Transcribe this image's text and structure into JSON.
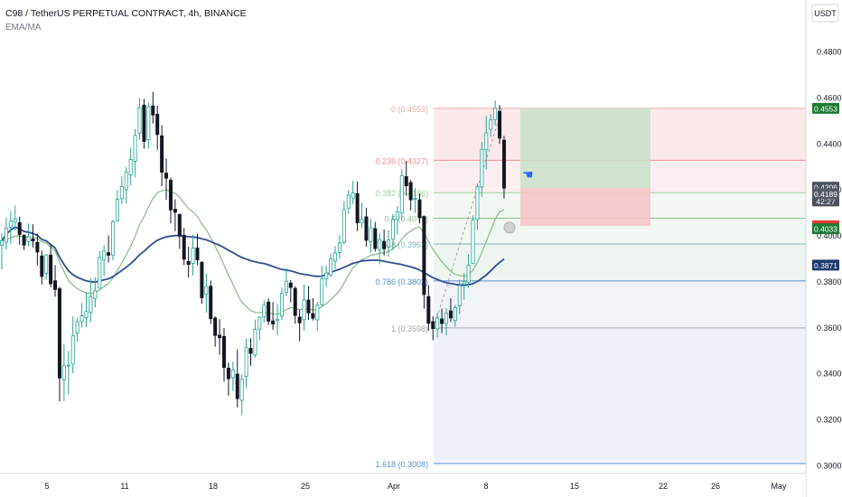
{
  "header": {
    "title": "C98 / TetherUS PERPETUAL CONTRACT, 4h, BINANCE",
    "indicator": "EMA/MA"
  },
  "colors": {
    "up": "#26a69a",
    "down": "#131722",
    "ema": "#8fbf8f",
    "ma": "#2f4f8f",
    "fib_red": "#f4a3a3",
    "fib_green": "#7fbf7f",
    "fib_blue": "#5a8fd0",
    "profit": "#c8e0c8",
    "loss": "#f5c4c8"
  },
  "chart_data": {
    "type": "candlestick",
    "currency": "USDT",
    "ylim": [
      0.296,
      0.506
    ],
    "price_ticks": [
      "0.4800",
      "0.4600",
      "0.4400",
      "0.4200",
      "0.4000",
      "0.3800",
      "0.3600",
      "0.3400",
      "0.3200",
      "0.3000"
    ],
    "time_ticks": [
      "5",
      "11",
      "18",
      "25",
      "Apr",
      "8",
      "15",
      "22",
      "26",
      "May"
    ],
    "price_labels": [
      {
        "value": 0.4553,
        "text": "0.4553",
        "bg": "#1f7a34"
      },
      {
        "value": 0.4206,
        "text": "0.4206",
        "bg": "#4a5160"
      },
      {
        "value": 0.415,
        "text": "42:27",
        "bg": "#4a5160"
      },
      {
        "value": 0.4189,
        "text": "0.4189",
        "bg": "#555a66"
      },
      {
        "value": 0.4042,
        "text": "0.4042",
        "bg": "#e53935"
      },
      {
        "value": 0.4033,
        "text": "0.4033",
        "bg": "#1f7a34"
      },
      {
        "value": 0.3871,
        "text": "0.3871",
        "bg": "#1e3a6e"
      }
    ],
    "fib_levels": [
      {
        "text": "0 (0.4553)",
        "value": 0.4553
      },
      {
        "text": "0.236 (0.4327)",
        "value": 0.4327
      },
      {
        "text": "0.382 (0.4186)",
        "value": 0.4186
      },
      {
        "text": "0.5 (0.4075)",
        "value": 0.4075
      },
      {
        "text": "0.618 (0.3963)",
        "value": 0.3963
      },
      {
        "text": "0.786 (0.3802)",
        "value": 0.3802
      },
      {
        "text": "1 (0.3598)",
        "value": 0.3598
      },
      {
        "text": "1.618 (0.3008)",
        "value": 0.3008
      }
    ],
    "position": {
      "entry": 0.4206,
      "target": 0.4553,
      "stop": 0.4042
    },
    "series_ohlc": [
      [
        0.3958,
        0.4008,
        0.3853,
        0.3977
      ],
      [
        0.3971,
        0.4077,
        0.3939,
        0.4032
      ],
      [
        0.4036,
        0.4106,
        0.3964,
        0.4062
      ],
      [
        0.4058,
        0.4131,
        0.4021,
        0.4072
      ],
      [
        0.4056,
        0.4081,
        0.396,
        0.4004
      ],
      [
        0.4,
        0.4006,
        0.3937,
        0.3958
      ],
      [
        0.3973,
        0.4052,
        0.3953,
        0.3994
      ],
      [
        0.3985,
        0.4049,
        0.3948,
        0.3976
      ],
      [
        0.397,
        0.4008,
        0.387,
        0.3928
      ],
      [
        0.3911,
        0.3934,
        0.3787,
        0.3822
      ],
      [
        0.3836,
        0.3919,
        0.3811,
        0.3915
      ],
      [
        0.3915,
        0.3959,
        0.3775,
        0.379
      ],
      [
        0.3803,
        0.3871,
        0.3734,
        0.3765
      ],
      [
        0.3768,
        0.3777,
        0.3279,
        0.338
      ],
      [
        0.3372,
        0.3527,
        0.328,
        0.3433
      ],
      [
        0.3432,
        0.3497,
        0.3308,
        0.3436
      ],
      [
        0.3441,
        0.3648,
        0.3401,
        0.3563
      ],
      [
        0.3575,
        0.3643,
        0.3537,
        0.3624
      ],
      [
        0.3625,
        0.3706,
        0.3599,
        0.365
      ],
      [
        0.3642,
        0.3751,
        0.3601,
        0.3669
      ],
      [
        0.3666,
        0.3814,
        0.3625,
        0.3733
      ],
      [
        0.3726,
        0.3818,
        0.3687,
        0.3759
      ],
      [
        0.3771,
        0.3933,
        0.377,
        0.3904
      ],
      [
        0.3894,
        0.3958,
        0.3823,
        0.3932
      ],
      [
        0.3925,
        0.4,
        0.3883,
        0.3914
      ],
      [
        0.3915,
        0.4068,
        0.3892,
        0.4059
      ],
      [
        0.4064,
        0.4197,
        0.406,
        0.4157
      ],
      [
        0.416,
        0.4256,
        0.4136,
        0.4212
      ],
      [
        0.4199,
        0.4299,
        0.4139,
        0.4275
      ],
      [
        0.4263,
        0.438,
        0.4218,
        0.433
      ],
      [
        0.4323,
        0.4463,
        0.4253,
        0.4435
      ],
      [
        0.4445,
        0.4597,
        0.4416,
        0.4556
      ],
      [
        0.4567,
        0.4594,
        0.4377,
        0.4409
      ],
      [
        0.4417,
        0.4578,
        0.4379,
        0.456
      ],
      [
        0.4563,
        0.4625,
        0.4487,
        0.4524
      ],
      [
        0.4527,
        0.4564,
        0.4372,
        0.4439
      ],
      [
        0.4433,
        0.4479,
        0.4215,
        0.4275
      ],
      [
        0.4271,
        0.4334,
        0.4155,
        0.4249
      ],
      [
        0.424,
        0.4251,
        0.4053,
        0.4111
      ],
      [
        0.4114,
        0.4157,
        0.4018,
        0.4101
      ],
      [
        0.4092,
        0.4091,
        0.3942,
        0.3997
      ],
      [
        0.4001,
        0.4032,
        0.3871,
        0.3897
      ],
      [
        0.3887,
        0.3951,
        0.3817,
        0.3874
      ],
      [
        0.3878,
        0.4004,
        0.3825,
        0.3945
      ],
      [
        0.3945,
        0.4007,
        0.3871,
        0.3894
      ],
      [
        0.3883,
        0.3889,
        0.3702,
        0.3729
      ],
      [
        0.3744,
        0.3835,
        0.3664,
        0.3778
      ],
      [
        0.3779,
        0.3804,
        0.3615,
        0.3638
      ],
      [
        0.3641,
        0.3648,
        0.3516,
        0.3565
      ],
      [
        0.3566,
        0.3636,
        0.3481,
        0.3555
      ],
      [
        0.3561,
        0.3598,
        0.3364,
        0.3426
      ],
      [
        0.3423,
        0.3447,
        0.3303,
        0.3377
      ],
      [
        0.3381,
        0.3451,
        0.3323,
        0.3415
      ],
      [
        0.3397,
        0.3504,
        0.3252,
        0.329
      ],
      [
        0.3283,
        0.3396,
        0.3218,
        0.3374
      ],
      [
        0.3387,
        0.3552,
        0.3334,
        0.3512
      ],
      [
        0.3509,
        0.3552,
        0.3433,
        0.3487
      ],
      [
        0.348,
        0.3634,
        0.3469,
        0.3591
      ],
      [
        0.3593,
        0.365,
        0.3546,
        0.3644
      ],
      [
        0.3646,
        0.3717,
        0.3621,
        0.3697
      ],
      [
        0.371,
        0.3726,
        0.3611,
        0.3627
      ],
      [
        0.3628,
        0.371,
        0.3589,
        0.3615
      ],
      [
        0.363,
        0.3701,
        0.3564,
        0.3636
      ],
      [
        0.3649,
        0.3774,
        0.3632,
        0.3747
      ],
      [
        0.3752,
        0.3857,
        0.3736,
        0.3801
      ],
      [
        0.3793,
        0.3806,
        0.3709,
        0.3774
      ],
      [
        0.377,
        0.3779,
        0.3616,
        0.3652
      ],
      [
        0.3645,
        0.3677,
        0.354,
        0.362
      ],
      [
        0.3633,
        0.3787,
        0.3586,
        0.372
      ],
      [
        0.3719,
        0.3779,
        0.3633,
        0.3663
      ],
      [
        0.366,
        0.3727,
        0.363,
        0.364
      ],
      [
        0.3633,
        0.3711,
        0.3584,
        0.3697
      ],
      [
        0.37,
        0.3868,
        0.3692,
        0.3811
      ],
      [
        0.3811,
        0.3869,
        0.3776,
        0.3837
      ],
      [
        0.3828,
        0.392,
        0.382,
        0.3898
      ],
      [
        0.3889,
        0.3953,
        0.3854,
        0.3924
      ],
      [
        0.3926,
        0.4001,
        0.3899,
        0.3968
      ],
      [
        0.3971,
        0.415,
        0.3962,
        0.4112
      ],
      [
        0.4119,
        0.4198,
        0.4094,
        0.4175
      ],
      [
        0.4163,
        0.4237,
        0.4137,
        0.4185
      ],
      [
        0.4182,
        0.4235,
        0.4019,
        0.4055
      ],
      [
        0.4054,
        0.4141,
        0.4031,
        0.4071
      ],
      [
        0.4081,
        0.4119,
        0.3952,
        0.3979
      ],
      [
        0.3973,
        0.4072,
        0.3926,
        0.4033
      ],
      [
        0.403,
        0.4059,
        0.393,
        0.3943
      ],
      [
        0.3936,
        0.4011,
        0.3875,
        0.3982
      ],
      [
        0.3974,
        0.4026,
        0.3913,
        0.3942
      ],
      [
        0.3951,
        0.4023,
        0.3908,
        0.398
      ],
      [
        0.3984,
        0.4094,
        0.3937,
        0.4069
      ],
      [
        0.407,
        0.4127,
        0.4004,
        0.4103
      ],
      [
        0.4097,
        0.4289,
        0.4068,
        0.426
      ],
      [
        0.4256,
        0.4325,
        0.4173,
        0.4216
      ],
      [
        0.423,
        0.4242,
        0.4109,
        0.4155
      ],
      [
        0.4158,
        0.4206,
        0.4098,
        0.4162
      ],
      [
        0.4155,
        0.4182,
        0.4052,
        0.4077
      ],
      [
        0.4082,
        0.4087,
        0.3682,
        0.3743
      ],
      [
        0.3734,
        0.3784,
        0.3586,
        0.3618
      ],
      [
        0.3625,
        0.3649,
        0.3544,
        0.3595
      ],
      [
        0.3594,
        0.3664,
        0.3556,
        0.3641
      ],
      [
        0.3637,
        0.3682,
        0.3575,
        0.3617
      ],
      [
        0.3617,
        0.3684,
        0.3566,
        0.3661
      ],
      [
        0.3672,
        0.3726,
        0.3624,
        0.3641
      ],
      [
        0.363,
        0.3697,
        0.3603,
        0.3686
      ],
      [
        0.3694,
        0.3807,
        0.3657,
        0.3782
      ],
      [
        0.379,
        0.3837,
        0.3721,
        0.38
      ],
      [
        0.3795,
        0.3917,
        0.3772,
        0.387
      ],
      [
        0.3878,
        0.4087,
        0.3877,
        0.4066
      ],
      [
        0.407,
        0.4226,
        0.4025,
        0.4211
      ],
      [
        0.4211,
        0.4407,
        0.4168,
        0.4374
      ],
      [
        0.4373,
        0.452,
        0.4287,
        0.4446
      ],
      [
        0.4462,
        0.4528,
        0.4429,
        0.4502
      ],
      [
        0.4504,
        0.4587,
        0.4478,
        0.4553
      ],
      [
        0.454,
        0.4567,
        0.4398,
        0.4423
      ],
      [
        0.4414,
        0.4433,
        0.4161,
        0.4206
      ]
    ]
  }
}
